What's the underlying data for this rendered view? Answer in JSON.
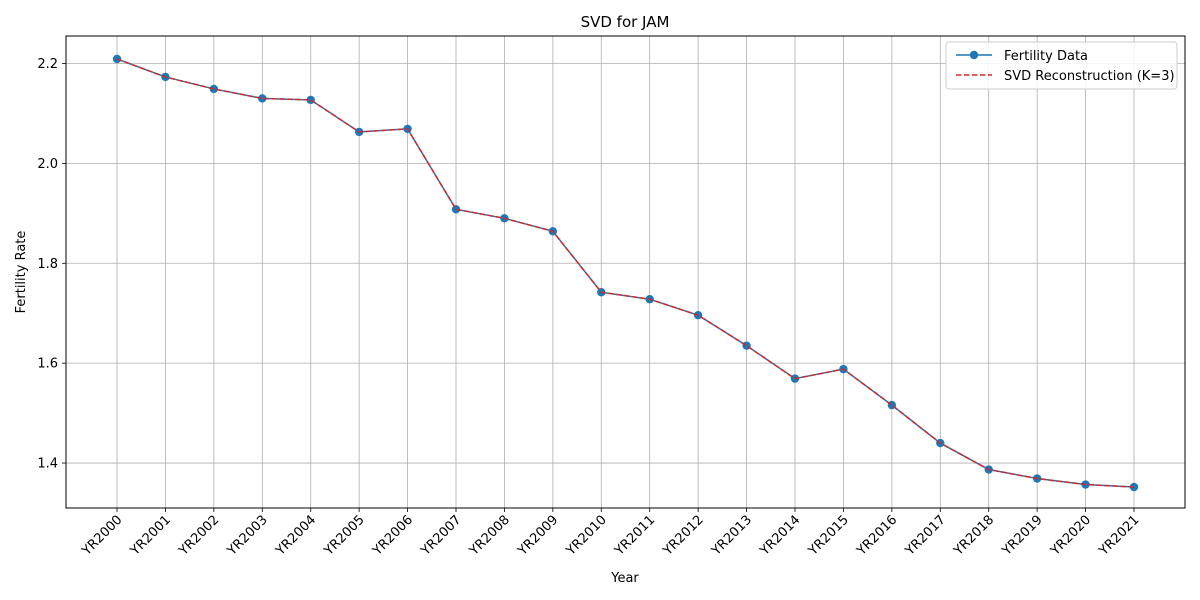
{
  "chart_data": {
    "type": "line",
    "title": "SVD for JAM",
    "xlabel": "Year",
    "ylabel": "Fertility Rate",
    "categories": [
      "YR2000",
      "YR2001",
      "YR2002",
      "YR2003",
      "YR2004",
      "YR2005",
      "YR2006",
      "YR2007",
      "YR2008",
      "YR2009",
      "YR2010",
      "YR2011",
      "YR2012",
      "YR2013",
      "YR2014",
      "YR2015",
      "YR2016",
      "YR2017",
      "YR2018",
      "YR2019",
      "YR2020",
      "YR2021"
    ],
    "ylim": [
      1.31,
      2.255
    ],
    "yticks": [
      1.4,
      1.6,
      1.8,
      2.0,
      2.2
    ],
    "ytick_labels": [
      "1.4",
      "1.6",
      "1.8",
      "2.0",
      "2.2"
    ],
    "grid": true,
    "legend_position": "top-right",
    "series": [
      {
        "name": "Fertility Data",
        "style": "solid-line-with-markers",
        "color": "#1f77b4",
        "values": [
          2.209,
          2.173,
          2.149,
          2.13,
          2.127,
          2.063,
          2.069,
          1.908,
          1.89,
          1.864,
          1.742,
          1.728,
          1.696,
          1.635,
          1.569,
          1.588,
          1.516,
          1.44,
          1.387,
          1.369,
          1.357,
          1.352
        ]
      },
      {
        "name": "SVD Reconstruction (K=3)",
        "style": "dashed-line",
        "color": "#d62728",
        "values": [
          2.209,
          2.173,
          2.149,
          2.13,
          2.127,
          2.063,
          2.069,
          1.908,
          1.89,
          1.864,
          1.742,
          1.728,
          1.696,
          1.635,
          1.569,
          1.588,
          1.516,
          1.44,
          1.387,
          1.369,
          1.357,
          1.352
        ]
      }
    ]
  }
}
